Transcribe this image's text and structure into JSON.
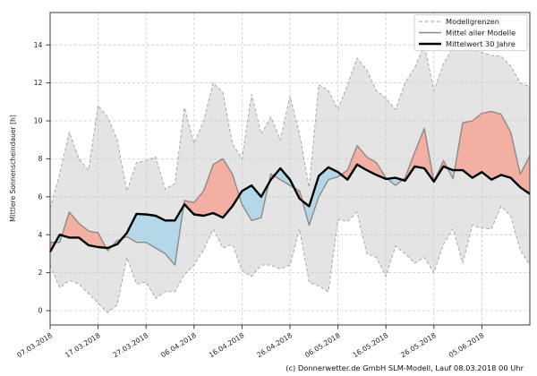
{
  "chart_data": {
    "type": "line",
    "title": "",
    "xlabel": "",
    "ylabel": "Mittlere Sonnenscheindauer [h]",
    "grid": true,
    "ylim": [
      -0.75,
      15.7
    ],
    "xlim_days": [
      0,
      100
    ],
    "y_ticks": [
      0,
      2,
      4,
      6,
      8,
      10,
      12,
      14
    ],
    "x_tick_days": [
      0,
      10,
      20,
      30,
      40,
      50,
      60,
      70,
      80,
      90
    ],
    "x_tick_labels": [
      "07.03.2018",
      "17.03.2018",
      "27.03.2018",
      "06.04.2018",
      "16.04.2018",
      "26.04.2018",
      "06.05.2018",
      "16.05.2018",
      "26.05.2018",
      "05.06.2018"
    ],
    "day_step": 2,
    "series": [
      {
        "name": "Modellgrenzen (obere Grenze)",
        "style": "dashed-bound",
        "values": [
          5.4,
          7.2,
          9.4,
          8.0,
          7.4,
          10.8,
          10.2,
          9.0,
          6.3,
          7.8,
          7.9,
          8.1,
          6.4,
          6.7,
          10.7,
          8.8,
          10.0,
          12.0,
          11.5,
          8.8,
          8.0,
          11.4,
          9.3,
          10.2,
          9.0,
          11.3,
          9.3,
          6.5,
          11.9,
          11.6,
          10.6,
          11.9,
          13.3,
          12.7,
          11.6,
          11.2,
          10.6,
          12.0,
          12.8,
          14.0,
          11.6,
          13.0,
          13.9,
          14.15,
          13.8,
          13.6,
          13.45,
          13.4,
          12.9,
          12.0,
          11.8
        ]
      },
      {
        "name": "Modellgrenzen (untere Grenze)",
        "style": "dashed-bound",
        "values": [
          2.4,
          1.2,
          1.6,
          1.4,
          0.9,
          0.4,
          -0.1,
          0.3,
          2.8,
          1.4,
          1.5,
          0.65,
          1.0,
          1.0,
          1.9,
          2.4,
          3.2,
          4.3,
          3.3,
          3.5,
          2.1,
          1.8,
          2.4,
          2.4,
          2.2,
          2.4,
          4.3,
          1.5,
          1.3,
          1.0,
          4.8,
          4.7,
          5.2,
          3.0,
          2.8,
          1.8,
          3.4,
          3.0,
          2.5,
          2.8,
          2.0,
          3.5,
          4.3,
          2.5,
          4.5,
          4.35,
          4.3,
          5.5,
          5.0,
          3.2,
          2.4
        ]
      },
      {
        "name": "Mittel aller Modelle",
        "style": "gray-line",
        "values": [
          3.6,
          3.6,
          5.2,
          4.6,
          4.2,
          4.1,
          3.15,
          3.7,
          3.9,
          3.6,
          3.6,
          3.3,
          3.0,
          2.4,
          5.8,
          5.7,
          6.3,
          7.7,
          8.0,
          7.2,
          5.6,
          4.75,
          4.9,
          7.2,
          6.9,
          6.6,
          6.3,
          4.5,
          6.0,
          6.9,
          7.05,
          7.4,
          8.7,
          8.1,
          7.8,
          7.0,
          6.6,
          7.0,
          8.35,
          9.6,
          6.8,
          7.9,
          6.95,
          9.9,
          10.0,
          10.4,
          10.5,
          10.35,
          9.4,
          7.2,
          8.15
        ]
      },
      {
        "name": "Mittelwert 30 Jahre",
        "style": "black-line",
        "values": [
          3.1,
          4.0,
          3.85,
          3.85,
          3.45,
          3.35,
          3.3,
          3.5,
          4.1,
          5.1,
          5.07,
          5.0,
          4.75,
          4.75,
          5.6,
          5.07,
          5.0,
          5.14,
          4.9,
          5.5,
          6.3,
          6.6,
          6.0,
          6.9,
          7.5,
          6.9,
          5.9,
          5.5,
          7.1,
          7.55,
          7.3,
          6.9,
          7.7,
          7.4,
          7.15,
          6.94,
          7.0,
          6.85,
          7.6,
          7.5,
          6.8,
          7.6,
          7.4,
          7.4,
          7.0,
          7.3,
          6.9,
          7.15,
          7.0,
          6.5,
          6.15
        ]
      }
    ],
    "legend": {
      "position": "upper right",
      "entries": [
        "Modellgrenzen",
        "Mittel aller Modelle",
        "Mittelwert 30 Jahre"
      ]
    },
    "fill_semantics": {
      "red": "Mittel aller Modelle über Mittelwert 30 Jahre",
      "blue": "Mittel aller Modelle unter Mittelwert 30 Jahre",
      "gray": "Spannweite der Modelle (Modellgrenzen)"
    }
  },
  "colors": {
    "envelope_fill": "#e4e4e4",
    "envelope_edge": "#a0a0a0",
    "red_fill": "#f2afa2",
    "blue_fill": "#b5d8e9",
    "gray_line": "#8a8a8a",
    "black_line": "#000000",
    "grid": "#c8c8c8",
    "spine": "#3a3a3a",
    "tick_text": "#262626"
  },
  "footer": {
    "copyright": "(c) Donnerwetter.de GmbH SLM-Modell, Lauf 08.03.2018 00 Uhr"
  }
}
